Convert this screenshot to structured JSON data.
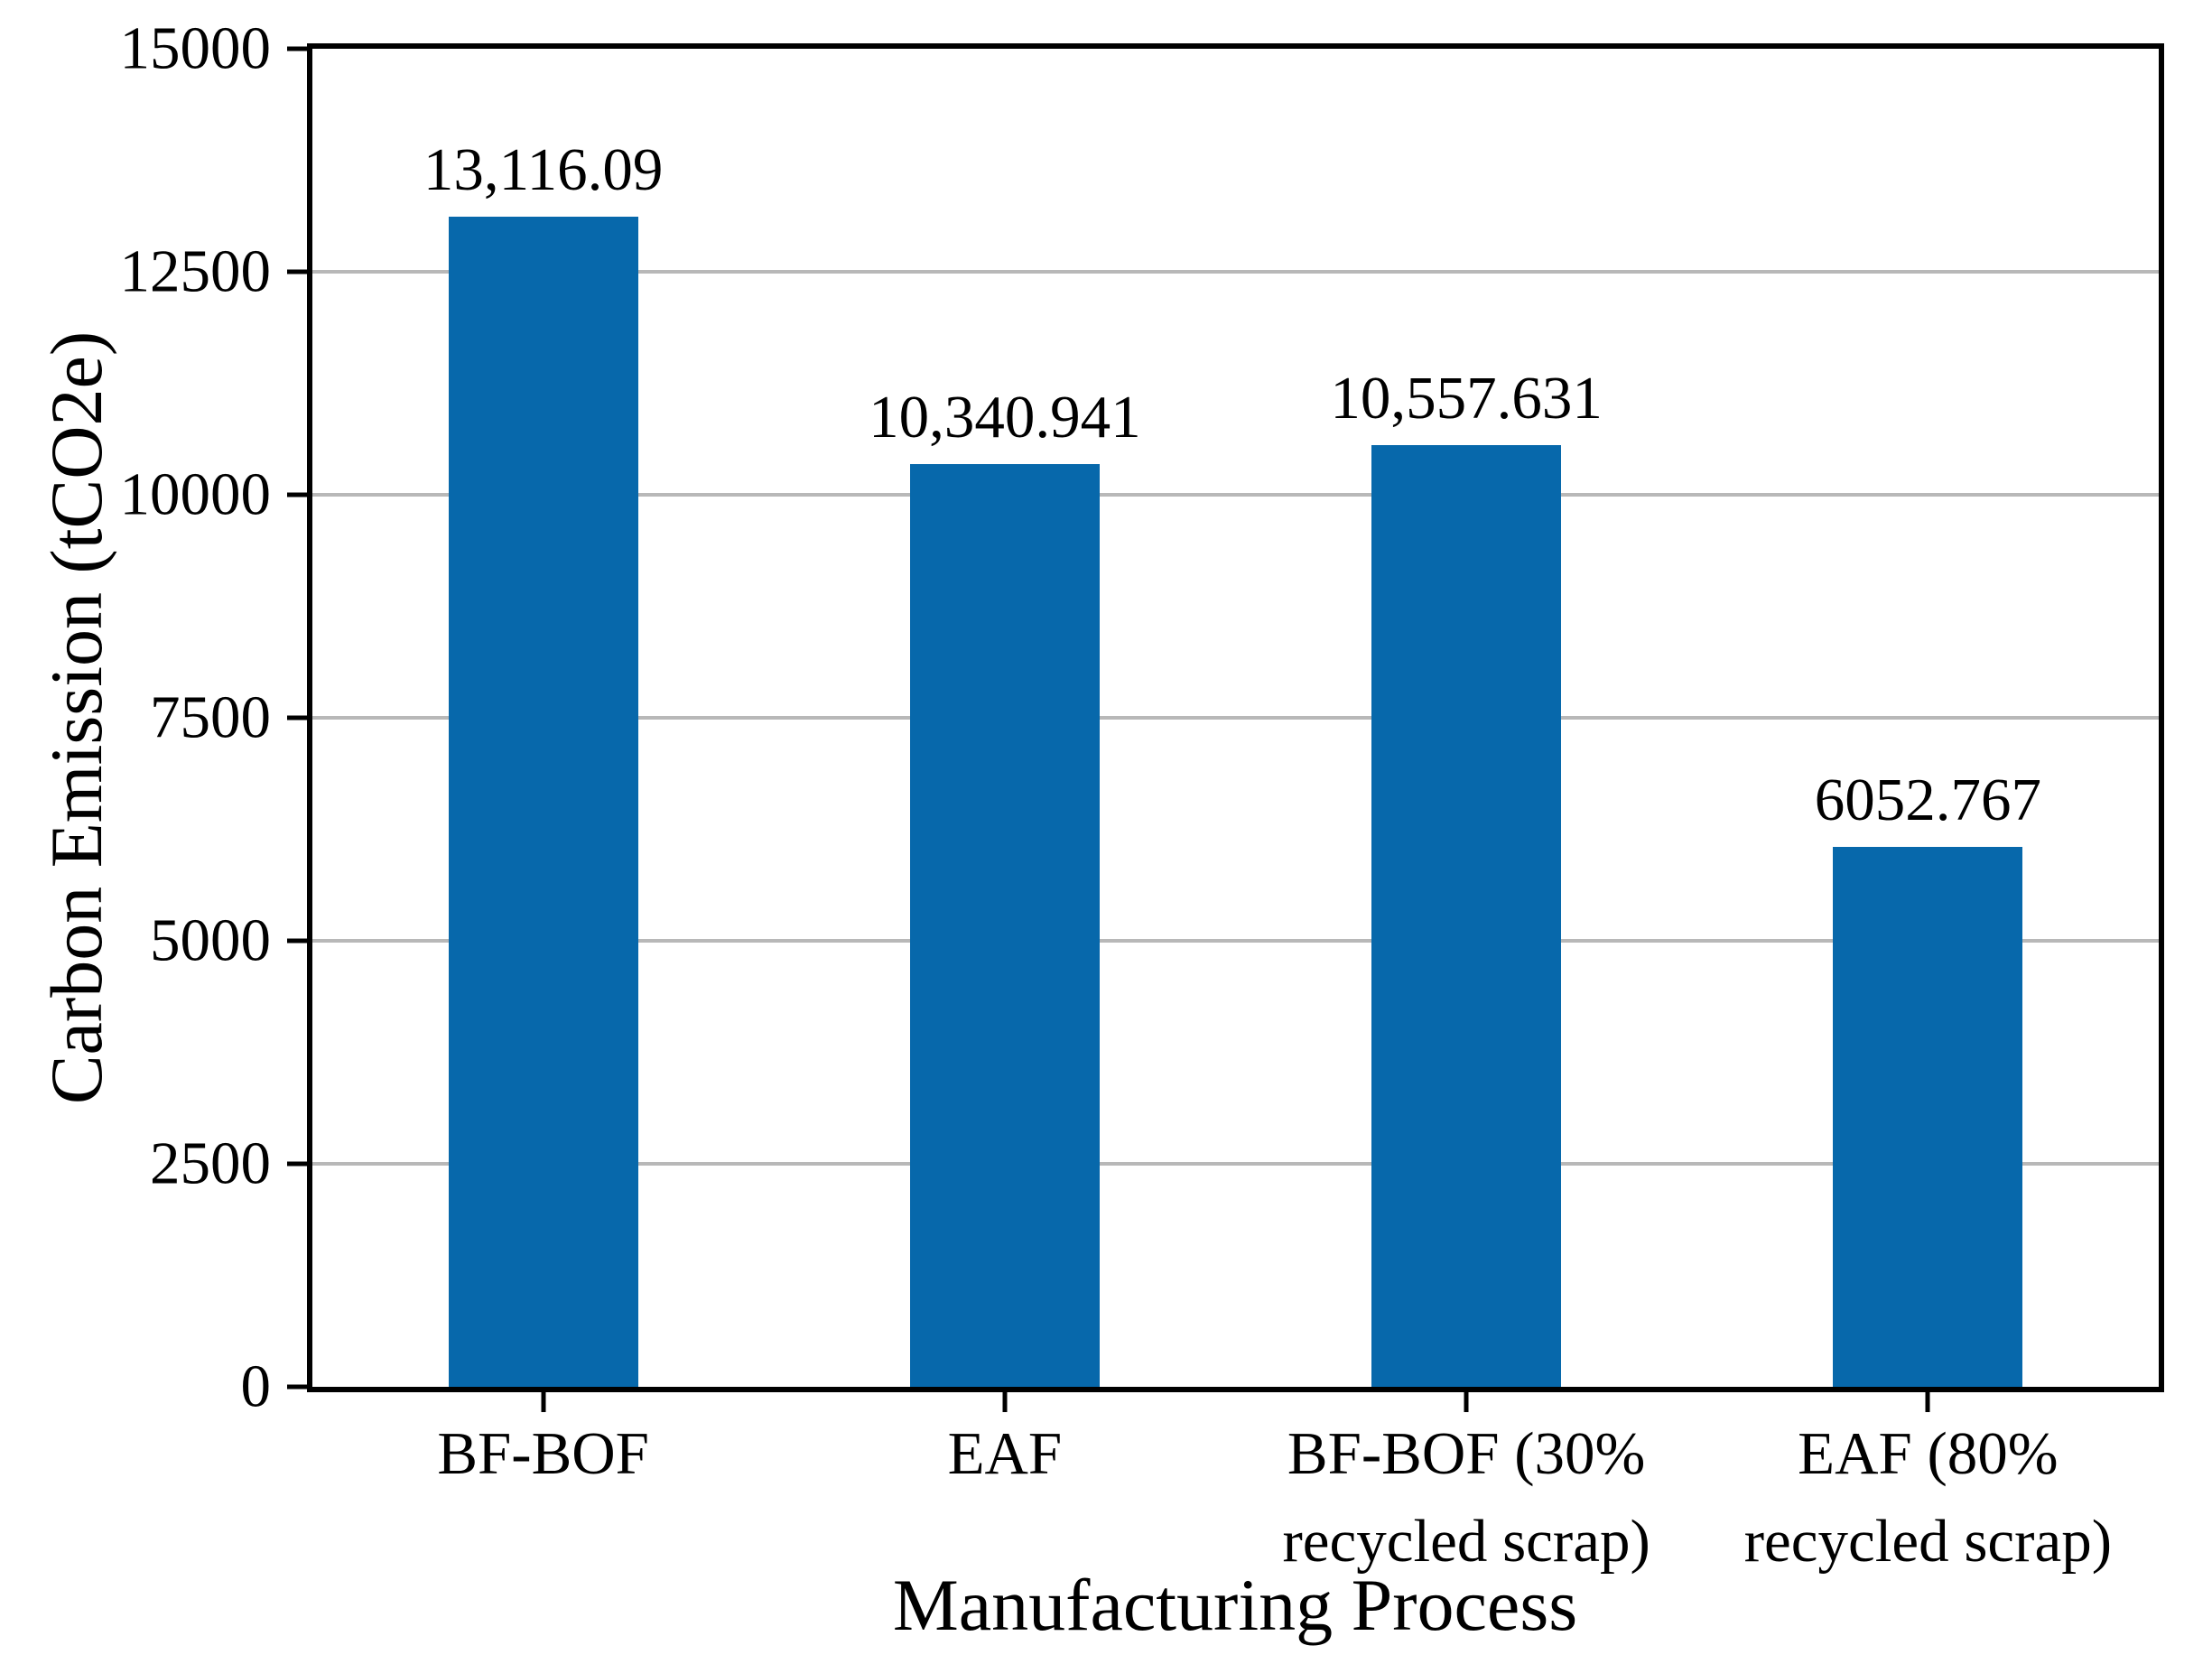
{
  "chart_data": {
    "type": "bar",
    "title": "",
    "xlabel": "Manufacturing Process",
    "ylabel": "Carbon Emission (tCO2e)",
    "categories": [
      "BF-BOF",
      "EAF",
      "BF-BOF (30%\nrecycled scrap)",
      "EAF (80%\nrecycled scrap)"
    ],
    "values": [
      13116.09,
      10340.941,
      10557.631,
      6052.767
    ],
    "value_labels": [
      "13,116.09",
      "10,340.941",
      "10,557.631",
      "6052.767"
    ],
    "ylim": [
      0,
      15000
    ],
    "yticks": [
      0,
      2500,
      5000,
      7500,
      10000,
      12500,
      15000
    ],
    "ytick_labels": [
      "0",
      "2500",
      "5000",
      "7500",
      "10000",
      "12500",
      "15000"
    ],
    "grid": "horizontal",
    "legend": null,
    "colors": {
      "bar": "#0768AB",
      "gridline": "#b8b8b8",
      "axis": "#000000",
      "text": "#000000",
      "background": "#ffffff"
    }
  }
}
